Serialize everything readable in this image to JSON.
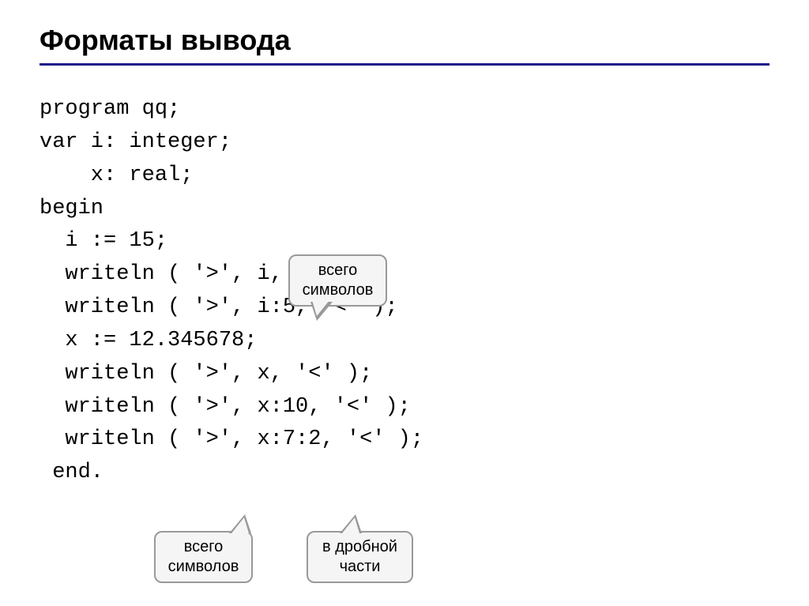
{
  "slide": {
    "title": "Форматы вывода",
    "title_fontsize": 36,
    "title_color": "#000000",
    "divider_color": "#1a1a8a",
    "divider_width": 3,
    "background_color": "#ffffff"
  },
  "code": {
    "font_family": "Courier New",
    "fontsize": 27,
    "color": "#000000",
    "lines": [
      "program qq;",
      "var i: integer;",
      "    x: real;",
      "begin",
      "  i := 15;",
      "  writeln ( '>', i, '<' );",
      "  writeln ( '>', i:5, '<' );",
      "  x := 12.345678;",
      "  writeln ( '>', x, '<' );",
      "  writeln ( '>', x:10, '<' );",
      "  writeln ( '>', x:7:2, '<' );",
      " end."
    ],
    "full_text": "program qq;\nvar i: integer;\n    x: real;\nbegin\n  i := 15;\n  writeln ( '>', i, '<' );\n  writeln ( '>', i:5, '<' );\n  x := 12.345678;\n  writeln ( '>', x, '<' );\n  writeln ( '>', x:10, '<' );\n  writeln ( '>', x:7:2, '<' );\n end."
  },
  "callouts": {
    "callout1": {
      "line1": "всего",
      "line2": "символов",
      "bg_color": "#f5f5f5",
      "border_color": "#999999",
      "fontsize": 20
    },
    "callout2": {
      "line1": "всего",
      "line2": "символов",
      "bg_color": "#f5f5f5",
      "border_color": "#999999",
      "fontsize": 20
    },
    "callout3": {
      "line1": "в дробной",
      "line2": "части",
      "bg_color": "#f5f5f5",
      "border_color": "#999999",
      "fontsize": 20
    }
  }
}
